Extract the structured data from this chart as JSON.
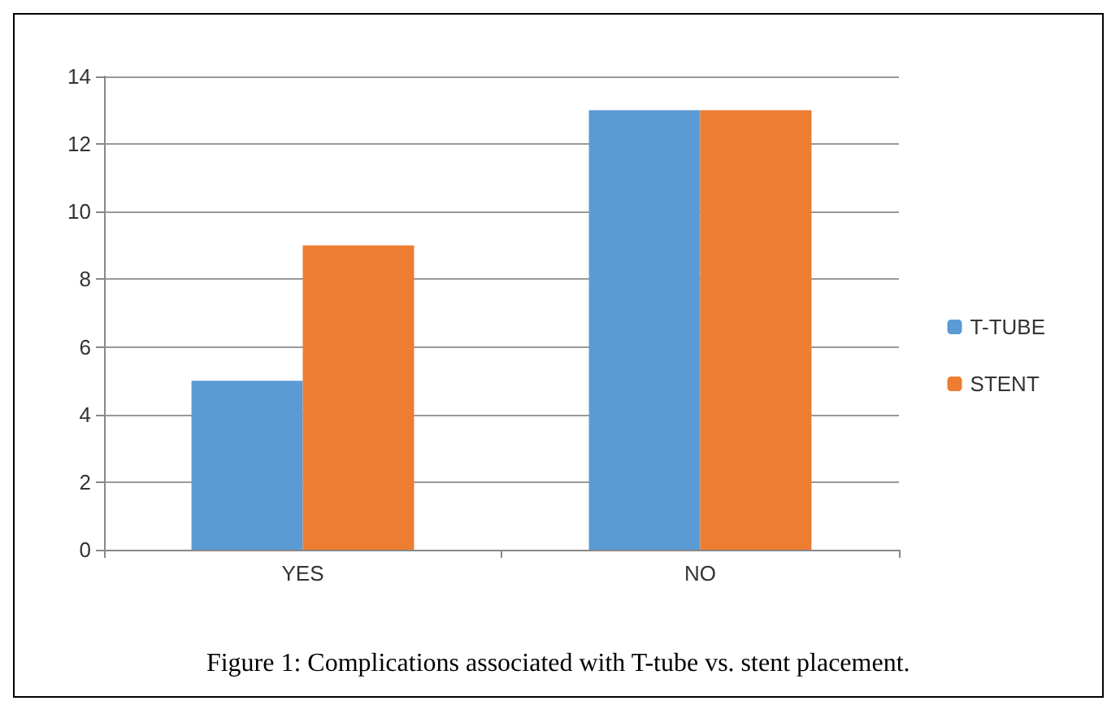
{
  "chart_data": {
    "type": "bar",
    "categories": [
      "YES",
      "NO"
    ],
    "series": [
      {
        "name": "T-TUBE",
        "color": "#5b9bd5",
        "values": [
          5,
          13
        ]
      },
      {
        "name": "STENT",
        "color": "#ed7d31",
        "values": [
          9,
          13
        ]
      }
    ],
    "ylim": [
      0,
      14
    ],
    "yticks": [
      0,
      2,
      4,
      6,
      8,
      10,
      12,
      14
    ],
    "grid": "y",
    "legend": "right",
    "annotations": [
      "Figure 1: Complications associated with T-tube vs. stent placement."
    ]
  }
}
